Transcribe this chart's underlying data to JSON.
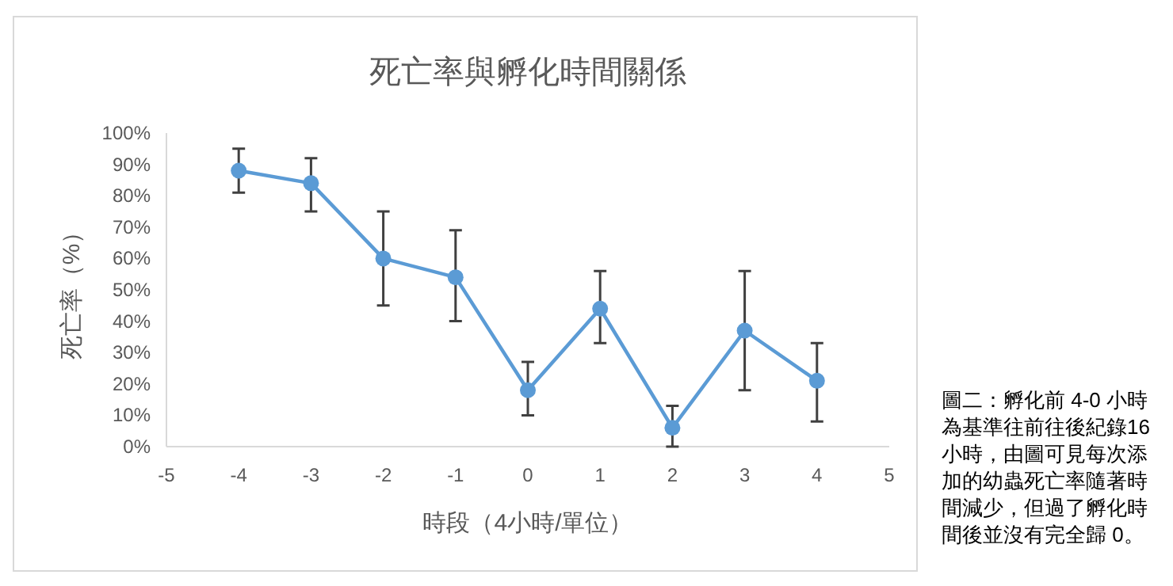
{
  "chart_data": {
    "type": "line",
    "title": "死亡率與孵化時間關係",
    "xlabel": "時段（4小時/單位）",
    "ylabel": "死亡率（%）",
    "annotations": [
      "圖二：孵化前 4-0 小時為基準往前往後紀錄16小時，由圖可見每次添加的幼蟲死亡率隨著時間減少，但過了孵化時間後並沒有完全歸 0。"
    ],
    "x": [
      -4,
      -3,
      -2,
      -1,
      0,
      1,
      2,
      3,
      4
    ],
    "series": [
      {
        "color": "#5b9bd5",
        "values": [
          88,
          84,
          60,
          54,
          18,
          44,
          6,
          37,
          21
        ],
        "errors": [
          [
            81,
            95
          ],
          [
            75,
            92
          ],
          [
            45,
            75
          ],
          [
            40,
            69
          ],
          [
            10,
            27
          ],
          [
            33,
            56
          ],
          [
            0,
            13
          ],
          [
            18,
            56
          ],
          [
            8,
            33
          ]
        ]
      }
    ],
    "xlim": [
      -5,
      5
    ],
    "xticks": [
      -5,
      -4,
      -3,
      -2,
      -1,
      0,
      1,
      2,
      3,
      4,
      5
    ],
    "ylim": [
      0,
      100
    ],
    "yticks": [
      {
        "value": 0,
        "label": "0%"
      },
      {
        "value": 10,
        "label": "10%"
      },
      {
        "value": 20,
        "label": "20%"
      },
      {
        "value": 30,
        "label": "30%"
      },
      {
        "value": 40,
        "label": "40%"
      },
      {
        "value": 50,
        "label": "50%"
      },
      {
        "value": 60,
        "label": "60%"
      },
      {
        "value": 70,
        "label": "70%"
      },
      {
        "value": 80,
        "label": "80%"
      },
      {
        "value": 90,
        "label": "90%"
      },
      {
        "value": 100,
        "label": "100%"
      }
    ],
    "marker": "circle",
    "grid": false
  }
}
